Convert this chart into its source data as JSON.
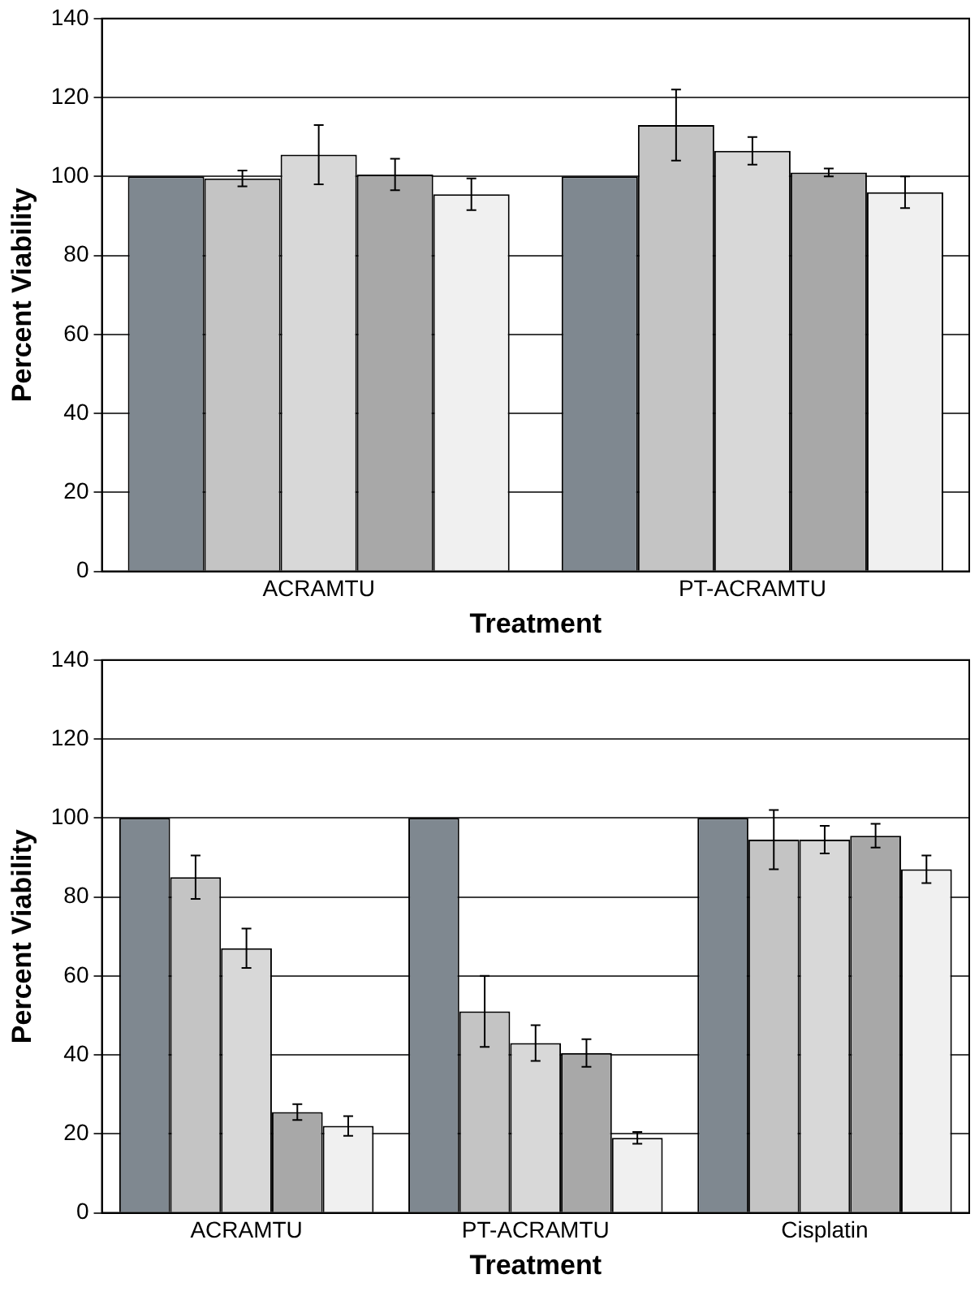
{
  "chart_data": [
    {
      "type": "bar",
      "xlabel": "Treatment",
      "ylabel": "Percent Viability",
      "categories": [
        "ACRAMTU",
        "PT-ACRAMTU"
      ],
      "ylim": [
        0,
        140
      ],
      "yticks": [
        0,
        20,
        40,
        60,
        80,
        100,
        120,
        140
      ],
      "grid": "y",
      "legend": false,
      "series": [
        {
          "color": "#7f8890",
          "values": [
            100,
            100
          ],
          "errors": [
            null,
            null
          ]
        },
        {
          "color": "#c4c4c4",
          "values": [
            99.5,
            113
          ],
          "errors": [
            2,
            9
          ]
        },
        {
          "color": "#d8d8d8",
          "values": [
            105.5,
            106.5
          ],
          "errors": [
            7.5,
            3.5
          ]
        },
        {
          "color": "#a8a8a8",
          "values": [
            100.5,
            101
          ],
          "errors": [
            4,
            1
          ]
        },
        {
          "color": "#f0f0f0",
          "values": [
            95.5,
            96
          ],
          "errors": [
            4,
            4
          ]
        }
      ]
    },
    {
      "type": "bar",
      "xlabel": "Treatment",
      "ylabel": "Percent Viability",
      "categories": [
        "ACRAMTU",
        "PT-ACRAMTU",
        "Cisplatin"
      ],
      "ylim": [
        0,
        140
      ],
      "yticks": [
        0,
        20,
        40,
        60,
        80,
        100,
        120,
        140
      ],
      "grid": "y",
      "legend": false,
      "series": [
        {
          "color": "#7f8890",
          "values": [
            100,
            100,
            100
          ],
          "errors": [
            null,
            null,
            null
          ]
        },
        {
          "color": "#c4c4c4",
          "values": [
            85,
            51,
            94.5
          ],
          "errors": [
            5.5,
            9,
            7.5
          ]
        },
        {
          "color": "#d8d8d8",
          "values": [
            67,
            43,
            94.5
          ],
          "errors": [
            5,
            4.5,
            3.5
          ]
        },
        {
          "color": "#a8a8a8",
          "values": [
            25.5,
            40.5,
            95.5
          ],
          "errors": [
            2,
            3.5,
            3
          ]
        },
        {
          "color": "#f0f0f0",
          "values": [
            22,
            19,
            87
          ],
          "errors": [
            2.5,
            1.5,
            3.5
          ]
        }
      ]
    }
  ]
}
